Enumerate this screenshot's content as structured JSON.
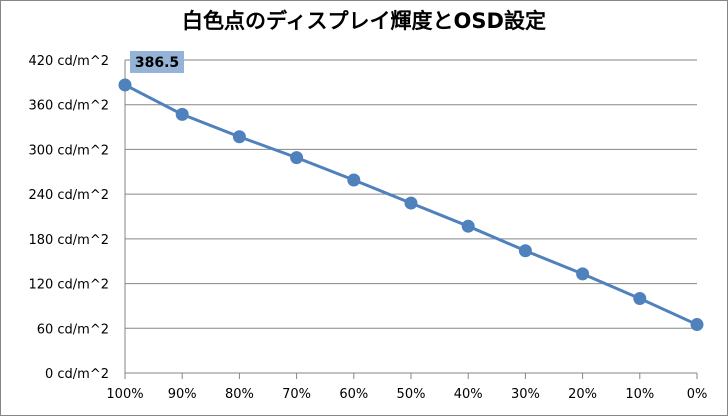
{
  "chart_data": {
    "type": "line",
    "title": "白色点のディスプレイ輝度とOSD設定",
    "xlabel": "",
    "ylabel": "",
    "categories": [
      "100%",
      "90%",
      "80%",
      "70%",
      "60%",
      "50%",
      "40%",
      "30%",
      "20%",
      "10%",
      "0%"
    ],
    "series": [
      {
        "values": [
          386.5,
          347,
          317,
          289,
          259,
          228,
          197,
          164,
          133,
          100,
          65
        ],
        "color": "#4f81bd"
      }
    ],
    "ylim": [
      0,
      420
    ],
    "yticks": [
      0,
      60,
      120,
      180,
      240,
      300,
      360,
      420
    ],
    "ytick_labels": [
      "0 cd/m^2",
      "60 cd/m^2",
      "120 cd/m^2",
      "180 cd/m^2",
      "240 cd/m^2",
      "300 cd/m^2",
      "360 cd/m^2",
      "420 cd/m^2"
    ],
    "grid": true,
    "legend": "none",
    "data_labels": [
      {
        "index": 0,
        "text": "386.5"
      }
    ],
    "label_box_color": "#95b3d7"
  }
}
